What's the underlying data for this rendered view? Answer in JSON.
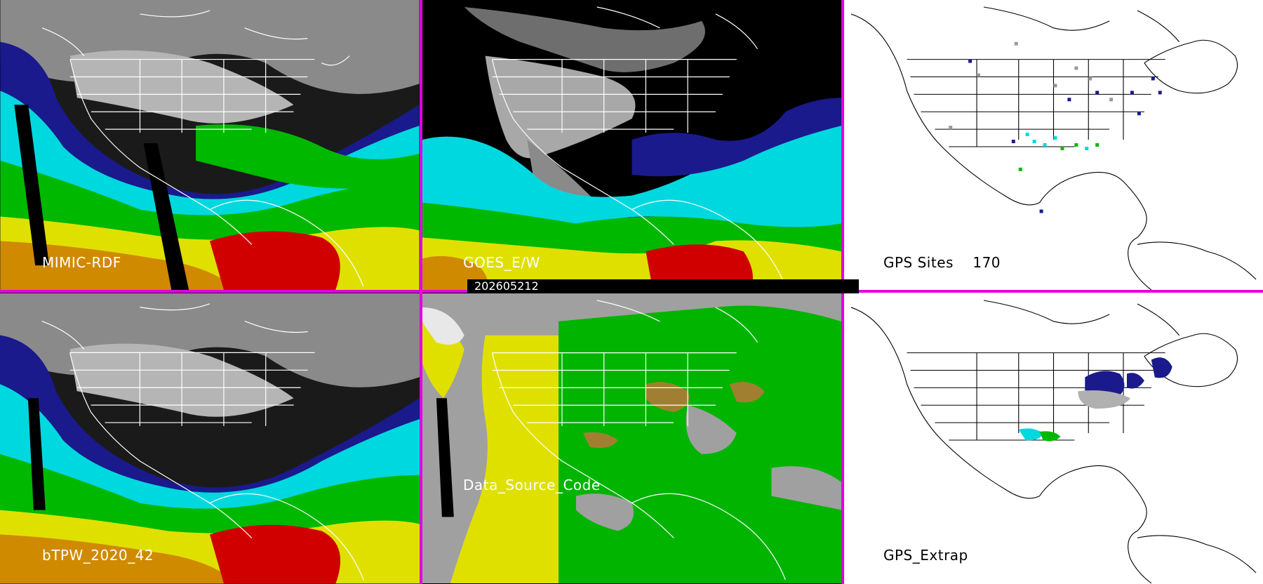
{
  "timestamp": "202605212",
  "panels": [
    {
      "label": "MIMIC-RDF",
      "label_color": "#ffffff",
      "theme": "tpw"
    },
    {
      "label": "GOES_E/W",
      "label_color": "#ffffff",
      "theme": "goes"
    },
    {
      "label": "GPS Sites    170",
      "label_color": "#000000",
      "theme": "gps"
    },
    {
      "label": "bTPW_2020_42",
      "label_color": "#ffffff",
      "theme": "tpw2"
    },
    {
      "label": "Data_Source_Code",
      "label_color": "#ffffff",
      "theme": "dsc"
    },
    {
      "label": "GPS_Extrap",
      "label_color": "#000000",
      "theme": "gpsx"
    }
  ],
  "colors": {
    "divider": "#e000e0",
    "water_low": "#1a1a8c",
    "water_mid": "#00d8e0",
    "water_high": "#00b800",
    "water_peak": "#e0e000",
    "water_max": "#d00000",
    "source_a": "#e0e000",
    "source_b": "#00b400",
    "source_gray": "#a0a0a0"
  }
}
